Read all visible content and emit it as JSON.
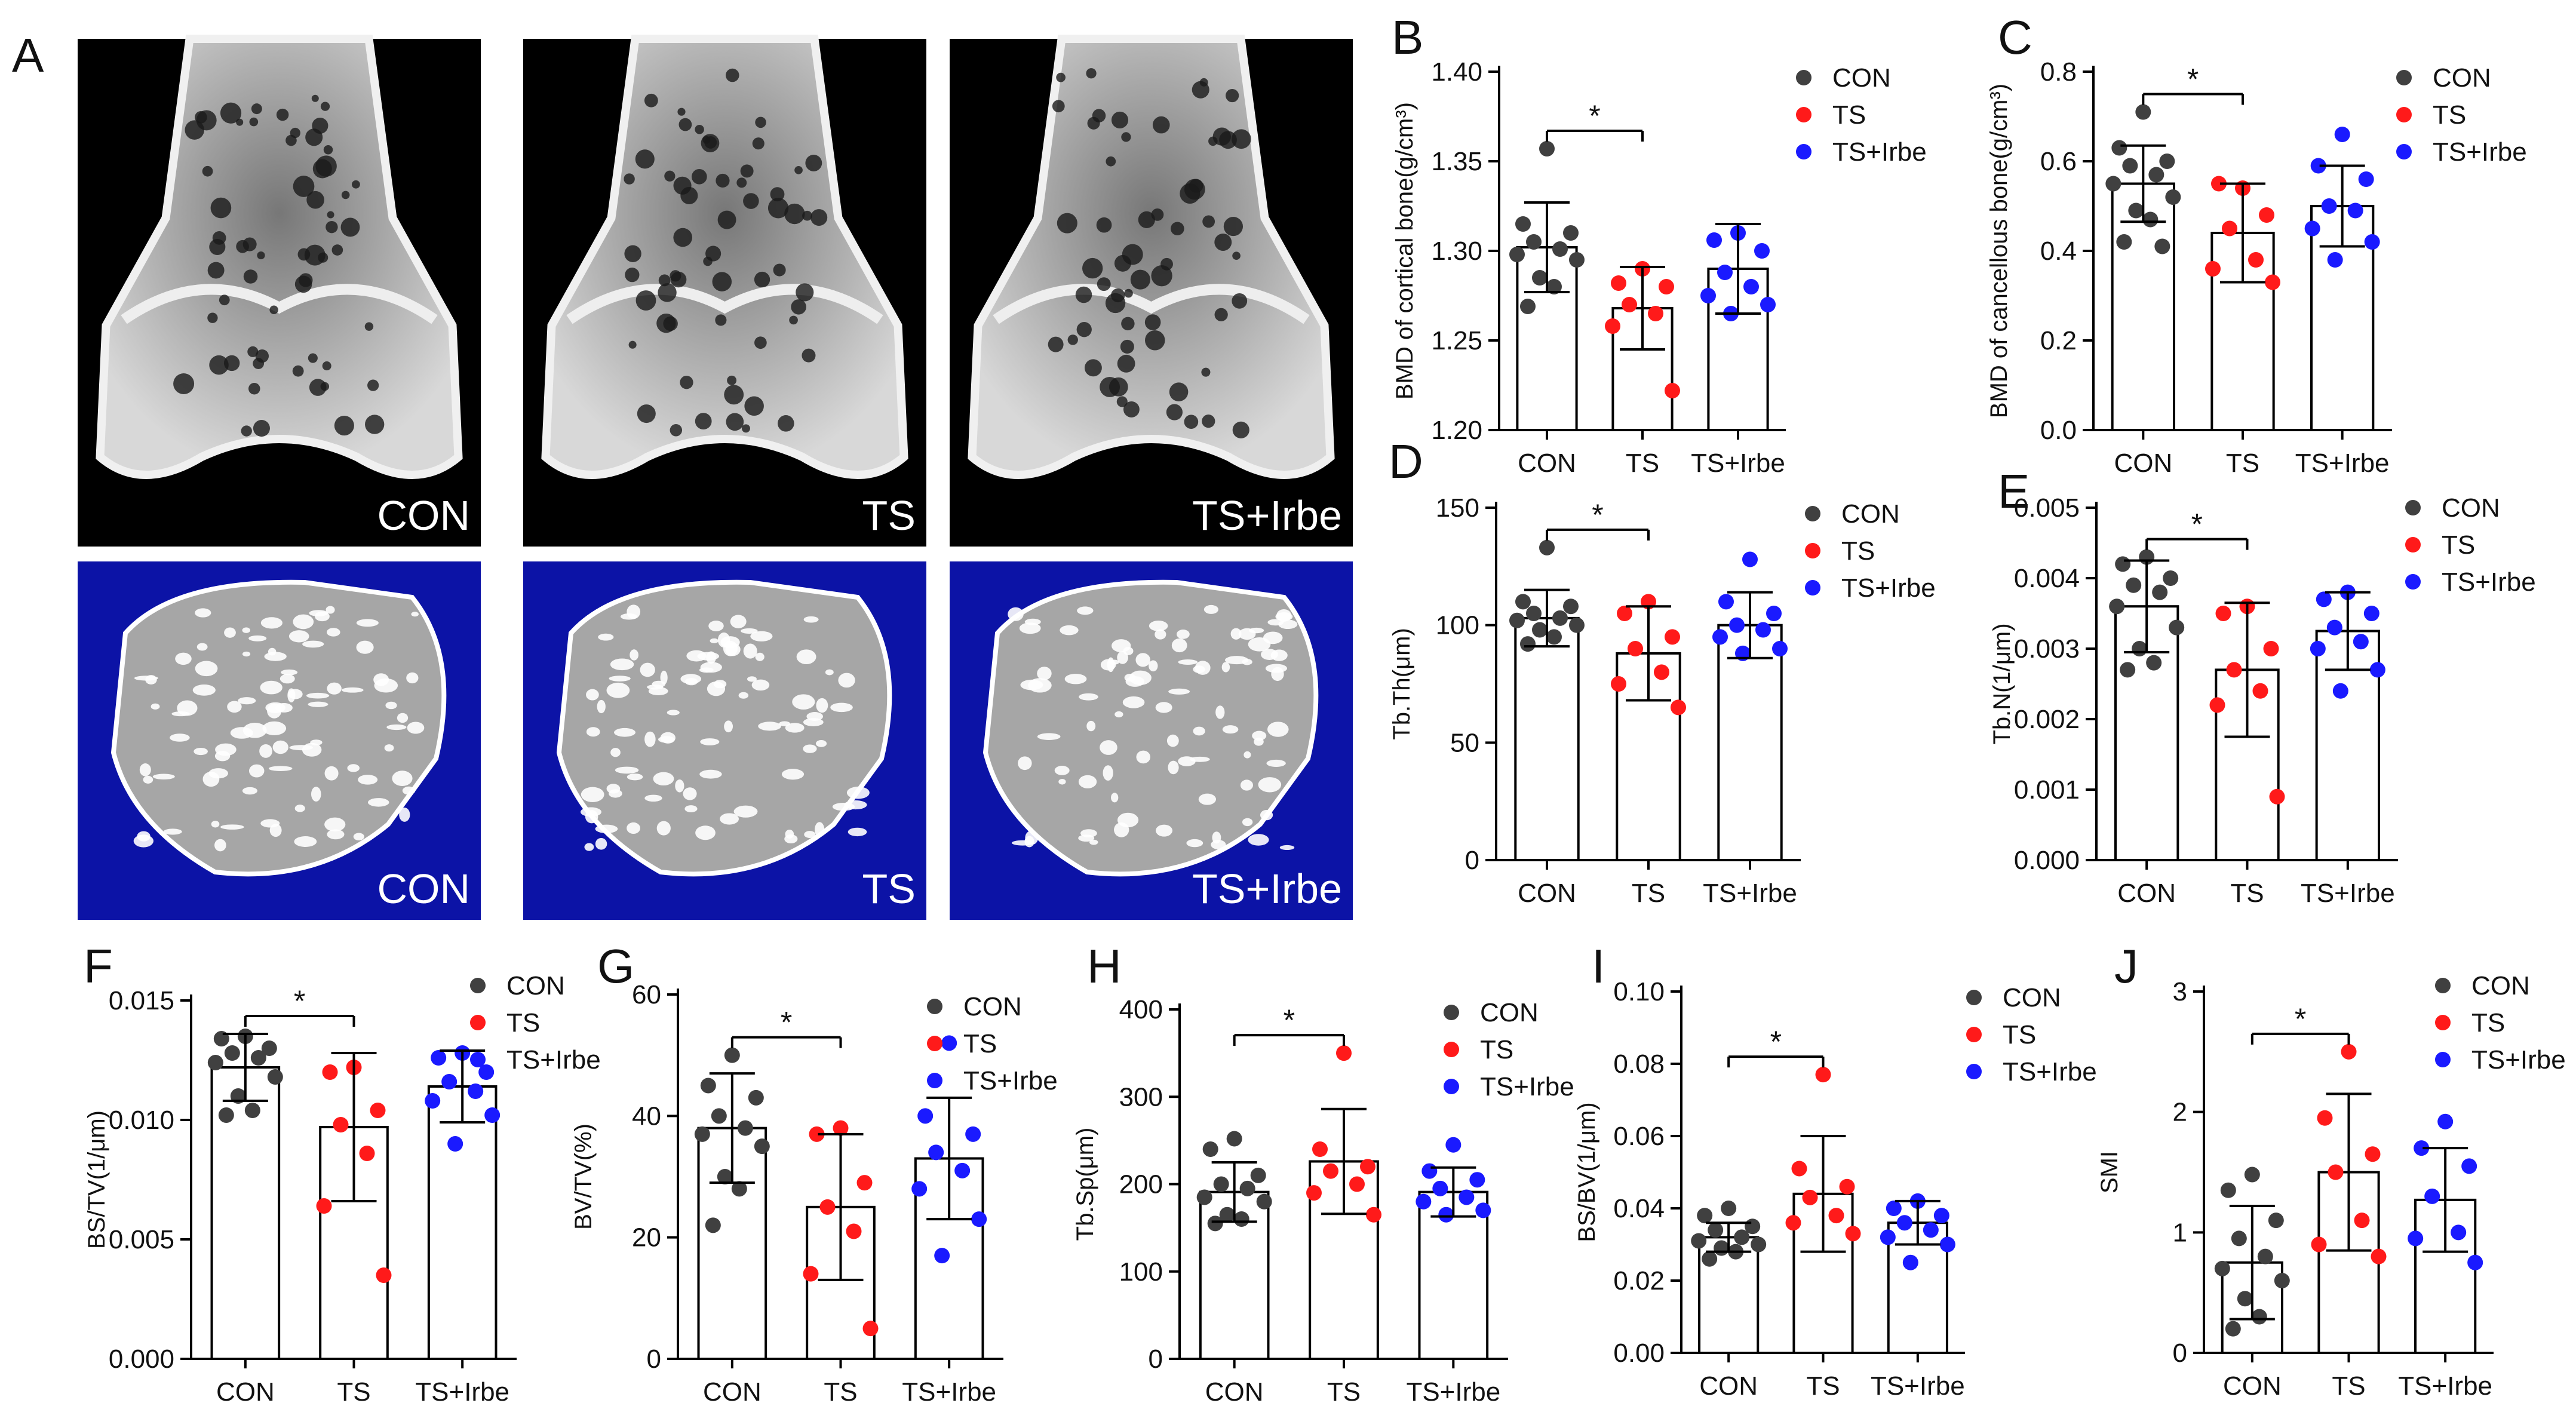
{
  "figure_label": "A",
  "colors": {
    "CON": "#404040",
    "TS": "#ff1a1a",
    "TS+Irbe": "#1a1aff",
    "microct_bg_top": "#000000",
    "microct_bg_bottom": "#0c13a6",
    "bone_white": "#f2f2f2",
    "bone_gray": "#a6a6a6"
  },
  "images": {
    "top": [
      {
        "label": "CON"
      },
      {
        "label": "TS"
      },
      {
        "label": "TS+Irbe"
      }
    ],
    "bottom": [
      {
        "label": "CON"
      },
      {
        "label": "TS"
      },
      {
        "label": "TS+Irbe"
      }
    ]
  },
  "chart_data": [
    {
      "panel": "B",
      "type": "bar",
      "ylabel": "BMD of cortical bone(g/cm³)",
      "ylim": [
        1.2,
        1.4
      ],
      "yticks": [
        "1.20",
        "1.25",
        "1.30",
        "1.35",
        "1.40"
      ],
      "categories": [
        "CON",
        "TS",
        "TS+Irbe"
      ],
      "means": [
        1.302,
        1.268,
        1.29
      ],
      "sd": [
        0.025,
        0.023,
        0.025
      ],
      "points": [
        [
          1.357,
          1.315,
          1.31,
          1.305,
          1.301,
          1.298,
          1.295,
          1.285,
          1.28,
          1.269
        ],
        [
          1.29,
          1.282,
          1.28,
          1.27,
          1.265,
          1.258,
          1.222
        ],
        [
          1.31,
          1.306,
          1.3,
          1.288,
          1.28,
          1.275,
          1.27,
          1.265
        ]
      ],
      "significance": [
        {
          "from": 0,
          "to": 1,
          "label": "*"
        }
      ],
      "legend": [
        "CON",
        "TS",
        "TS+Irbe"
      ]
    },
    {
      "panel": "C",
      "type": "bar",
      "ylabel": "BMD of cancellous bone(g/cm³)",
      "ylim": [
        0.0,
        0.8
      ],
      "yticks": [
        "0.0",
        "0.2",
        "0.4",
        "0.6",
        "0.8"
      ],
      "categories": [
        "CON",
        "TS",
        "TS+Irbe"
      ],
      "means": [
        0.55,
        0.44,
        0.5
      ],
      "sd": [
        0.085,
        0.11,
        0.09
      ],
      "points": [
        [
          0.71,
          0.63,
          0.6,
          0.59,
          0.57,
          0.55,
          0.52,
          0.49,
          0.47,
          0.42,
          0.41
        ],
        [
          0.54,
          0.55,
          0.48,
          0.45,
          0.38,
          0.36,
          0.33
        ],
        [
          0.66,
          0.59,
          0.56,
          0.5,
          0.49,
          0.45,
          0.42,
          0.38
        ]
      ],
      "significance": [
        {
          "from": 0,
          "to": 1,
          "label": "*"
        }
      ],
      "legend": [
        "CON",
        "TS",
        "TS+Irbe"
      ]
    },
    {
      "panel": "D",
      "type": "bar",
      "ylabel": "Tb.Th(μm)",
      "ylim": [
        0,
        150
      ],
      "yticks": [
        "0",
        "50",
        "100",
        "150"
      ],
      "categories": [
        "CON",
        "TS",
        "TS+Irbe"
      ],
      "means": [
        103,
        88,
        100
      ],
      "sd": [
        12,
        20,
        14
      ],
      "points": [
        [
          133,
          110,
          108,
          105,
          103,
          102,
          100,
          98,
          95,
          92
        ],
        [
          110,
          105,
          95,
          90,
          80,
          75,
          65
        ],
        [
          128,
          110,
          105,
          100,
          98,
          95,
          90,
          88
        ]
      ],
      "significance": [
        {
          "from": 0,
          "to": 1,
          "label": "*"
        }
      ],
      "legend": [
        "CON",
        "TS",
        "TS+Irbe"
      ]
    },
    {
      "panel": "E",
      "type": "bar",
      "ylabel": "Tb.N(1/μm)",
      "ylim": [
        0.0,
        0.005
      ],
      "yticks": [
        "0.000",
        "0.001",
        "0.002",
        "0.003",
        "0.004",
        "0.005"
      ],
      "categories": [
        "CON",
        "TS",
        "TS+Irbe"
      ],
      "means": [
        0.0036,
        0.0027,
        0.00325
      ],
      "sd": [
        0.00065,
        0.00095,
        0.00055
      ],
      "points": [
        [
          0.0043,
          0.0042,
          0.004,
          0.0039,
          0.0038,
          0.0036,
          0.0033,
          0.003,
          0.0028,
          0.0027
        ],
        [
          0.0036,
          0.0035,
          0.003,
          0.0027,
          0.0024,
          0.0022,
          0.0009
        ],
        [
          0.0038,
          0.0037,
          0.0035,
          0.0033,
          0.0031,
          0.003,
          0.0027,
          0.0024
        ]
      ],
      "significance": [
        {
          "from": 0,
          "to": 1,
          "label": "*"
        }
      ],
      "legend": [
        "CON",
        "TS",
        "TS+Irbe"
      ]
    },
    {
      "panel": "F",
      "type": "bar",
      "ylabel": "BS/TV(1/μm)",
      "ylim": [
        0.0,
        0.015
      ],
      "yticks": [
        "0.000",
        "0.005",
        "0.010",
        "0.015"
      ],
      "categories": [
        "CON",
        "TS",
        "TS+Irbe"
      ],
      "means": [
        0.0122,
        0.0097,
        0.0114
      ],
      "sd": [
        0.0014,
        0.0031,
        0.0015
      ],
      "points": [
        [
          0.0135,
          0.0134,
          0.013,
          0.0128,
          0.0126,
          0.0124,
          0.0118,
          0.011,
          0.0104,
          0.0102
        ],
        [
          0.0122,
          0.012,
          0.0104,
          0.0098,
          0.0086,
          0.0064,
          0.0035
        ],
        [
          0.0128,
          0.0126,
          0.012,
          0.0116,
          0.0112,
          0.0108,
          0.0102,
          0.009
        ]
      ],
      "significance": [
        {
          "from": 0,
          "to": 1,
          "label": "*"
        }
      ],
      "legend": [
        "CON",
        "TS",
        "TS+Irbe"
      ]
    },
    {
      "panel": "G",
      "type": "bar",
      "ylabel": "BV/TV(%)",
      "ylim": [
        0,
        60
      ],
      "yticks": [
        "0",
        "20",
        "40",
        "60"
      ],
      "categories": [
        "CON",
        "TS",
        "TS+Irbe"
      ],
      "means": [
        38,
        25,
        33
      ],
      "sd": [
        9,
        12,
        10
      ],
      "points": [
        [
          50,
          45,
          43,
          40,
          38,
          37,
          35,
          30,
          28,
          22
        ],
        [
          38,
          37,
          29,
          25,
          21,
          14,
          5
        ],
        [
          52,
          40,
          37,
          34,
          31,
          28,
          23,
          17
        ]
      ],
      "significance": [
        {
          "from": 0,
          "to": 1,
          "label": "*"
        }
      ],
      "legend": [
        "CON",
        "TS",
        "TS+Irbe"
      ]
    },
    {
      "panel": "H",
      "type": "bar",
      "ylabel": "Tb.Sp(μm)",
      "ylim": [
        0,
        400
      ],
      "yticks": [
        "0",
        "100",
        "200",
        "300",
        "400"
      ],
      "categories": [
        "CON",
        "TS",
        "TS+Irbe"
      ],
      "means": [
        191,
        226,
        191
      ],
      "sd": [
        34,
        60,
        28
      ],
      "points": [
        [
          252,
          240,
          210,
          200,
          195,
          185,
          180,
          165,
          160,
          155
        ],
        [
          350,
          240,
          220,
          215,
          200,
          190,
          165
        ],
        [
          245,
          215,
          205,
          195,
          185,
          180,
          170,
          165
        ]
      ],
      "significance": [
        {
          "from": 0,
          "to": 1,
          "label": "*"
        }
      ],
      "legend": [
        "CON",
        "TS",
        "TS+Irbe"
      ]
    },
    {
      "panel": "I",
      "type": "bar",
      "ylabel": "BS/BV(1/μm)",
      "ylim": [
        0.0,
        0.1
      ],
      "yticks": [
        "0.00",
        "0.02",
        "0.04",
        "0.06",
        "0.08",
        "0.10"
      ],
      "categories": [
        "CON",
        "TS",
        "TS+Irbe"
      ],
      "means": [
        0.032,
        0.044,
        0.036
      ],
      "sd": [
        0.004,
        0.016,
        0.006
      ],
      "points": [
        [
          0.04,
          0.038,
          0.035,
          0.034,
          0.032,
          0.031,
          0.03,
          0.029,
          0.028,
          0.026
        ],
        [
          0.077,
          0.051,
          0.046,
          0.043,
          0.038,
          0.036,
          0.033
        ],
        [
          0.042,
          0.04,
          0.038,
          0.036,
          0.034,
          0.032,
          0.03,
          0.025
        ]
      ],
      "significance": [
        {
          "from": 0,
          "to": 1,
          "label": "*"
        }
      ],
      "legend": [
        "CON",
        "TS",
        "TS+Irbe"
      ]
    },
    {
      "panel": "J",
      "type": "bar",
      "ylabel": "SMI",
      "ylim": [
        0,
        3
      ],
      "yticks": [
        "0",
        "1",
        "2",
        "3"
      ],
      "categories": [
        "CON",
        "TS",
        "TS+Irbe"
      ],
      "means": [
        0.75,
        1.5,
        1.27
      ],
      "sd": [
        0.47,
        0.65,
        0.43
      ],
      "points": [
        [
          1.48,
          1.35,
          1.1,
          0.95,
          0.8,
          0.7,
          0.6,
          0.45,
          0.3,
          0.2
        ],
        [
          2.5,
          1.95,
          1.65,
          1.5,
          1.1,
          0.9,
          0.8
        ],
        [
          1.92,
          1.7,
          1.55,
          1.3,
          1.0,
          0.95,
          0.75
        ]
      ],
      "significance": [
        {
          "from": 0,
          "to": 1,
          "label": "*"
        }
      ],
      "legend": [
        "CON",
        "TS",
        "TS+Irbe"
      ]
    }
  ]
}
